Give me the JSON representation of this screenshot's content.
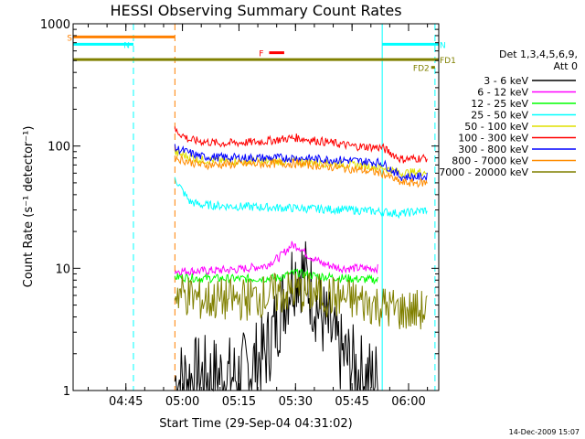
{
  "chart_data": {
    "type": "line",
    "title": "HESSI Observing Summary Count Rates",
    "xlabel": "Start Time (29-Sep-04 04:31:02)",
    "ylabel": "Count Rate (s⁻¹ detector⁻¹)",
    "x_ticks": [
      "04:45",
      "05:00",
      "05:15",
      "05:30",
      "05:45",
      "06:00"
    ],
    "y_ticks": [
      "1",
      "10",
      "100",
      "1000"
    ],
    "xlim": [
      "04:31",
      "06:08"
    ],
    "ylim": [
      1,
      1000
    ],
    "y_scale": "log",
    "legend_title": "Det 1,3,4,5,6,9,",
    "legend_subtitle": "Att 0",
    "legend_position": "right",
    "series": [
      {
        "name": "3 - 6 keV",
        "color": "#000000",
        "x": [
          "04:58",
          "05:05",
          "05:15",
          "05:22",
          "05:26",
          "05:29",
          "05:31",
          "05:33",
          "05:37",
          "05:42",
          "05:48",
          "05:52"
        ],
        "y": [
          1.2,
          1.3,
          1.3,
          2,
          4.5,
          8.5,
          10,
          8,
          4,
          2,
          1.3,
          1.2
        ]
      },
      {
        "name": "6 - 12 keV",
        "color": "#ff00ff",
        "x": [
          "04:58",
          "05:05",
          "05:15",
          "05:22",
          "05:26",
          "05:29",
          "05:31",
          "05:33",
          "05:37",
          "05:42",
          "05:48",
          "05:52"
        ],
        "y": [
          9.5,
          9.5,
          9.8,
          10.5,
          12.5,
          15.5,
          15,
          13,
          11,
          10,
          10,
          10
        ]
      },
      {
        "name": "12 - 25 keV",
        "color": "#00ff00",
        "x": [
          "04:58",
          "05:05",
          "05:15",
          "05:25",
          "05:30",
          "05:35",
          "05:45",
          "05:52"
        ],
        "y": [
          8.5,
          8.3,
          8.2,
          8.3,
          9.2,
          8.7,
          8.2,
          8.0
        ]
      },
      {
        "name": "25 - 50 keV",
        "color": "#00ffff",
        "x": [
          "04:58",
          "05:00",
          "05:02",
          "05:05",
          "05:15",
          "05:30",
          "05:45",
          "05:53",
          "05:58",
          "06:05"
        ],
        "y": [
          55,
          43,
          35,
          33,
          32,
          31,
          30,
          29,
          28,
          30
        ]
      },
      {
        "name": "50 - 100 keV",
        "color": "#e0e000",
        "x": [
          "04:58",
          "05:05",
          "05:15",
          "05:30",
          "05:45",
          "05:53",
          "05:58",
          "06:05"
        ],
        "y": [
          88,
          77,
          75,
          75,
          70,
          67,
          60,
          62
        ]
      },
      {
        "name": "100 - 300 keV",
        "color": "#ff0000",
        "x": [
          "04:58",
          "05:02",
          "05:10",
          "05:20",
          "05:30",
          "05:38",
          "05:45",
          "05:53",
          "05:58",
          "06:05"
        ],
        "y": [
          135,
          112,
          105,
          108,
          117,
          108,
          100,
          97,
          78,
          80
        ]
      },
      {
        "name": "300 - 800 keV",
        "color": "#0000ff",
        "x": [
          "04:58",
          "05:05",
          "05:15",
          "05:30",
          "05:45",
          "05:53",
          "05:58",
          "06:05"
        ],
        "y": [
          96,
          82,
          80,
          80,
          76,
          73,
          56,
          56
        ]
      },
      {
        "name": "800 - 7000 keV",
        "color": "#ff8c00",
        "x": [
          "04:58",
          "05:05",
          "05:15",
          "05:30",
          "05:45",
          "05:53",
          "05:58",
          "06:05"
        ],
        "y": [
          80,
          70,
          71,
          72,
          65,
          60,
          50,
          50
        ]
      },
      {
        "name": "7000 - 20000 keV",
        "color": "#808000",
        "x": [
          "04:58",
          "05:05",
          "05:15",
          "05:30",
          "05:45",
          "05:52",
          "05:58",
          "06:05"
        ],
        "y": [
          6.5,
          5.5,
          5.5,
          6.5,
          5.5,
          5,
          4.5,
          4.5
        ]
      }
    ],
    "flags": [
      {
        "label": "S",
        "color": "#ff8000",
        "y": 780,
        "x_start": "04:31",
        "x_end": "04:58"
      },
      {
        "label": "N",
        "color": "#00ffff",
        "y": 680,
        "x_start": "04:31",
        "x_end": "04:47"
      },
      {
        "label": "N",
        "color": "#00ffff",
        "y": 680,
        "x_start": "05:53",
        "x_end": "06:08"
      },
      {
        "label": "FD1",
        "color": "#808000",
        "y": 510,
        "x_start": "04:31",
        "x_end": "06:08"
      },
      {
        "label": "FD2",
        "color": "#808000",
        "y": 440,
        "x_start": "06:06",
        "x_end": "06:07"
      },
      {
        "label": "F",
        "color": "#ff0000",
        "y": 580,
        "x_start": "05:23",
        "x_end": "05:27"
      }
    ],
    "vertical_lines": [
      {
        "x": "04:47",
        "color": "#00ffff",
        "style": "dashed"
      },
      {
        "x": "04:58",
        "color": "#ff8000",
        "style": "dashed"
      },
      {
        "x": "06:07",
        "color": "#00ffff",
        "style": "dashed"
      },
      {
        "x": "05:53",
        "color": "#00ffff",
        "style": "solid"
      }
    ],
    "footer_date": "14-Dec-2009 15:07"
  }
}
